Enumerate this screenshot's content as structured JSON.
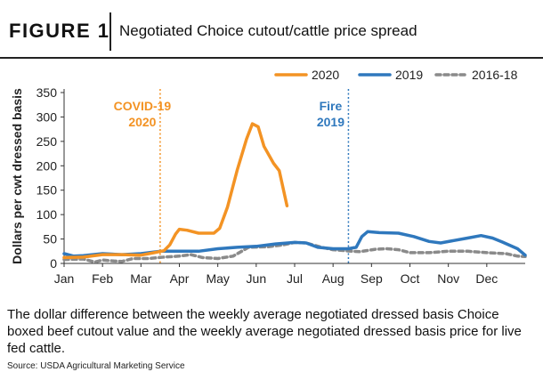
{
  "header": {
    "figure_label": "FIGURE 1",
    "title": "Negotiated Choice cutout/cattle price spread"
  },
  "caption": "The dollar difference between the weekly average negotiated dressed basis Choice boxed beef cutout value and the weekly average negotiated dressed basis price for live fed cattle.",
  "source": "Source: USDA Agricultural Marketing Service",
  "colors": {
    "series_2020": "#f39324",
    "series_2019": "#2f78bd",
    "series_2016_18": "#8a8a8a",
    "axis": "#333333"
  },
  "chart_data": {
    "type": "line",
    "title": "Negotiated Choice cutout/cattle price spread",
    "ylabel": "Dollars per cwt dressed basis",
    "xlabel": "",
    "ylim": [
      0,
      350
    ],
    "yticks": [
      0,
      50,
      100,
      150,
      200,
      250,
      300,
      350
    ],
    "xlim": [
      0,
      12
    ],
    "xticks": [
      {
        "label": "Jan",
        "x": 0
      },
      {
        "label": "Feb",
        "x": 1
      },
      {
        "label": "Mar",
        "x": 2
      },
      {
        "label": "Apr",
        "x": 3
      },
      {
        "label": "May",
        "x": 4
      },
      {
        "label": "Jun",
        "x": 5
      },
      {
        "label": "Jul",
        "x": 6
      },
      {
        "label": "Aug",
        "x": 7
      },
      {
        "label": "Sep",
        "x": 8
      },
      {
        "label": "Oct",
        "x": 9
      },
      {
        "label": "Nov",
        "x": 10
      },
      {
        "label": "Dec",
        "x": 11
      }
    ],
    "grid": false,
    "legend_position": "top",
    "series": [
      {
        "name": "2020",
        "style": "solid",
        "points": [
          [
            0,
            12
          ],
          [
            0.5,
            13
          ],
          [
            1,
            18
          ],
          [
            1.5,
            18
          ],
          [
            2,
            17
          ],
          [
            2.35,
            22
          ],
          [
            2.6,
            26
          ],
          [
            2.75,
            38
          ],
          [
            2.9,
            60
          ],
          [
            3.0,
            70
          ],
          [
            3.2,
            68
          ],
          [
            3.5,
            62
          ],
          [
            3.9,
            62
          ],
          [
            4.05,
            72
          ],
          [
            4.25,
            115
          ],
          [
            4.5,
            190
          ],
          [
            4.75,
            255
          ],
          [
            4.9,
            286
          ],
          [
            5.05,
            280
          ],
          [
            5.2,
            240
          ],
          [
            5.45,
            205
          ],
          [
            5.6,
            190
          ],
          [
            5.8,
            118
          ]
        ]
      },
      {
        "name": "2019",
        "style": "solid",
        "points": [
          [
            0,
            20
          ],
          [
            0.25,
            15
          ],
          [
            0.5,
            16
          ],
          [
            1,
            20
          ],
          [
            1.5,
            18
          ],
          [
            2,
            20
          ],
          [
            2.5,
            25
          ],
          [
            3,
            25
          ],
          [
            3.5,
            25
          ],
          [
            4,
            30
          ],
          [
            4.5,
            33
          ],
          [
            5,
            35
          ],
          [
            5.5,
            40
          ],
          [
            6,
            43
          ],
          [
            6.3,
            42
          ],
          [
            6.6,
            33
          ],
          [
            7,
            30
          ],
          [
            7.4,
            30
          ],
          [
            7.6,
            33
          ],
          [
            7.75,
            55
          ],
          [
            7.9,
            65
          ],
          [
            8.2,
            63
          ],
          [
            8.7,
            62
          ],
          [
            9.1,
            55
          ],
          [
            9.5,
            45
          ],
          [
            9.8,
            42
          ],
          [
            10.5,
            52
          ],
          [
            10.85,
            57
          ],
          [
            11.15,
            52
          ],
          [
            11.4,
            44
          ],
          [
            11.8,
            30
          ],
          [
            12,
            17
          ]
        ]
      },
      {
        "name": "2016-18",
        "style": "dashed",
        "points": [
          [
            0,
            8
          ],
          [
            0.5,
            9
          ],
          [
            0.8,
            3
          ],
          [
            1,
            7
          ],
          [
            1.3,
            5
          ],
          [
            1.5,
            4
          ],
          [
            1.8,
            10
          ],
          [
            2.2,
            10
          ],
          [
            2.6,
            13
          ],
          [
            3,
            15
          ],
          [
            3.3,
            18
          ],
          [
            3.6,
            12
          ],
          [
            4,
            10
          ],
          [
            4.4,
            15
          ],
          [
            4.8,
            33
          ],
          [
            5.3,
            34
          ],
          [
            5.7,
            38
          ],
          [
            6,
            43
          ],
          [
            6.3,
            42
          ],
          [
            6.7,
            33
          ],
          [
            7,
            28
          ],
          [
            7.5,
            25
          ],
          [
            7.7,
            24
          ],
          [
            8.1,
            29
          ],
          [
            8.4,
            30
          ],
          [
            8.7,
            28
          ],
          [
            9.0,
            22
          ],
          [
            9.5,
            22
          ],
          [
            10,
            25
          ],
          [
            10.5,
            25
          ],
          [
            11,
            22
          ],
          [
            11.5,
            20
          ],
          [
            11.8,
            15
          ],
          [
            12,
            14
          ]
        ]
      }
    ],
    "annotations": [
      {
        "label": [
          "COVID-19",
          "2020"
        ],
        "x": 2.5,
        "color_key": "series_2020"
      },
      {
        "label": [
          "Fire",
          "2019"
        ],
        "x": 7.4,
        "color_key": "series_2019"
      }
    ]
  }
}
